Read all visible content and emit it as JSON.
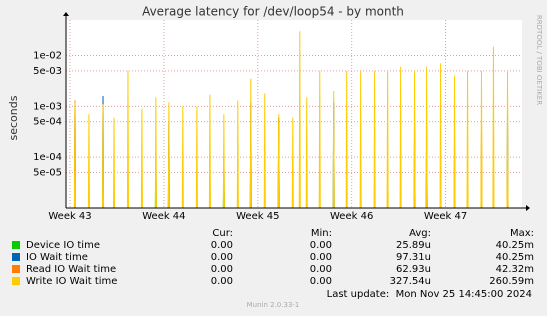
{
  "chart_data": {
    "type": "line",
    "title": "Average latency for /dev/loop54 - by month",
    "ylabel": "seconds",
    "side_label": "RRDTOOL / TOBI OETIKER",
    "log_y": true,
    "grid": true,
    "xlim": [
      -0.3,
      33.7
    ],
    "xticks": [
      {
        "value": 0,
        "label": "Week 43"
      },
      {
        "value": 7,
        "label": "Week 44"
      },
      {
        "value": 14,
        "label": "Week 45"
      },
      {
        "value": 21,
        "label": "Week 46"
      },
      {
        "value": 28,
        "label": "Week 47"
      }
    ],
    "ylim": [
      1e-05,
      0.05
    ],
    "yticks": [
      {
        "value": 0.01,
        "label": "1e-02"
      },
      {
        "value": 0.005,
        "label": "5e-03"
      },
      {
        "value": 0.001,
        "label": "1e-03"
      },
      {
        "value": 0.0005,
        "label": "5e-04"
      },
      {
        "value": 0.0001,
        "label": "1e-04"
      },
      {
        "value": 5e-05,
        "label": "5e-05"
      }
    ],
    "series": [
      {
        "name": "Device IO time",
        "color": "#00cc00",
        "x": [
          6.36,
          6.4,
          6.44,
          11.43,
          11.47,
          11.51,
          26.55,
          26.59,
          26.63,
          30.64,
          30.68,
          30.72
        ],
        "values": [
          1e-05,
          0.0001,
          1e-05,
          1e-05,
          0.0001,
          1e-05,
          1e-05,
          8e-05,
          1e-05,
          1e-05,
          3e-05,
          1e-05
        ]
      },
      {
        "name": "IO Wait time",
        "color": "#0066b3",
        "x": [
          0.33,
          0.37,
          0.41,
          2.42,
          2.46,
          2.5,
          7.33,
          7.37,
          7.41,
          13.44,
          13.48,
          13.52,
          15.52,
          15.56,
          15.6,
          19.62,
          19.66,
          19.7,
          25.65,
          25.69,
          25.73,
          26.55,
          26.59,
          26.63,
          32.58,
          32.62,
          32.66
        ],
        "values": [
          1e-05,
          0.0013,
          1e-05,
          1e-05,
          0.0016,
          1e-05,
          1e-05,
          0.0005,
          1e-05,
          1e-05,
          0.0012,
          1e-05,
          1e-05,
          0.0006,
          1e-05,
          1e-05,
          0.0012,
          1e-05,
          1e-05,
          0.0005,
          1e-05,
          1e-05,
          0.0004,
          1e-05,
          1e-05,
          0.001,
          1e-05
        ]
      },
      {
        "name": "Read IO Wait time",
        "color": "#ff8000",
        "x": [
          0.33,
          0.37,
          0.41,
          15.52,
          15.56,
          15.6,
          28.63,
          28.67,
          28.71,
          30.64,
          30.68,
          30.72
        ],
        "values": [
          1e-05,
          0.0013,
          1e-05,
          1e-05,
          0.0005,
          1e-05,
          1e-05,
          0.0002,
          1e-05,
          1e-05,
          0.0005,
          1e-05
        ]
      },
      {
        "name": "Write IO Wait time",
        "color": "#ffcc00",
        "x": [
          0.33,
          0.37,
          0.41,
          1.37,
          1.41,
          1.45,
          2.42,
          2.46,
          2.5,
          3.24,
          3.28,
          3.32,
          4.28,
          4.32,
          4.36,
          5.32,
          5.36,
          5.4,
          6.36,
          6.4,
          6.44,
          7.33,
          7.37,
          7.41,
          8.37,
          8.41,
          8.45,
          9.42,
          9.46,
          9.5,
          10.39,
          10.43,
          10.47,
          11.43,
          11.47,
          11.51,
          12.47,
          12.51,
          12.55,
          13.44,
          13.48,
          13.52,
          14.48,
          14.52,
          14.56,
          15.52,
          15.56,
          15.6,
          16.57,
          16.61,
          16.65,
          17.09,
          17.13,
          17.17,
          17.61,
          17.65,
          17.69,
          18.58,
          18.62,
          18.66,
          19.62,
          19.66,
          19.7,
          20.59,
          20.63,
          20.67,
          21.63,
          21.67,
          21.71,
          22.67,
          22.71,
          22.75,
          23.64,
          23.68,
          23.72,
          24.61,
          24.65,
          24.69,
          25.65,
          25.69,
          25.73,
          26.55,
          26.59,
          26.63,
          27.59,
          27.63,
          27.67,
          28.63,
          28.67,
          28.71,
          29.6,
          29.64,
          29.68,
          30.64,
          30.68,
          30.72,
          31.53,
          31.57,
          31.61,
          32.58,
          32.62,
          32.66
        ],
        "values": [
          1e-05,
          0.0012,
          1e-05,
          1e-05,
          0.0007,
          1e-05,
          1e-05,
          0.0011,
          1e-05,
          1e-05,
          0.0006,
          1e-05,
          1e-05,
          0.005,
          1e-05,
          1e-05,
          0.0009,
          1e-05,
          1e-05,
          0.0015,
          1e-05,
          1e-05,
          0.0012,
          1e-05,
          1e-05,
          0.001,
          1e-05,
          1e-05,
          0.001,
          1e-05,
          1e-05,
          0.0017,
          1e-05,
          1e-05,
          0.0007,
          1e-05,
          1e-05,
          0.0013,
          1e-05,
          1e-05,
          0.0035,
          1e-05,
          1e-05,
          0.0018,
          1e-05,
          1e-05,
          0.0007,
          1e-05,
          1e-05,
          0.0006,
          1e-05,
          1e-05,
          0.03,
          1e-05,
          1e-05,
          0.0015,
          1e-05,
          1e-05,
          0.005,
          1e-05,
          1e-05,
          0.002,
          1e-05,
          1e-05,
          0.005,
          1e-05,
          1e-05,
          0.005,
          1e-05,
          1e-05,
          0.005,
          1e-05,
          1e-05,
          0.005,
          1e-05,
          1e-05,
          0.006,
          1e-05,
          1e-05,
          0.005,
          1e-05,
          1e-05,
          0.006,
          1e-05,
          1e-05,
          0.007,
          1e-05,
          1e-05,
          0.004,
          1e-05,
          1e-05,
          0.005,
          1e-05,
          1e-05,
          0.005,
          1e-05,
          1e-05,
          0.015,
          1e-05,
          1e-05,
          0.005,
          1e-05
        ]
      }
    ],
    "legend_stats": {
      "columns": [
        "Cur:",
        "Min:",
        "Avg:",
        "Max:"
      ],
      "rows": [
        [
          "0.00",
          "0.00",
          "25.89u",
          "40.25m"
        ],
        [
          "0.00",
          "0.00",
          "97.31u",
          "40.25m"
        ],
        [
          "0.00",
          "0.00",
          "62.93u",
          "42.32m"
        ],
        [
          "0.00",
          "0.00",
          "327.54u",
          "260.59m"
        ]
      ]
    },
    "last_update": "Last update:  Mon Nov 25 14:45:00 2024",
    "footer": "Munin 2.0.33-1"
  }
}
